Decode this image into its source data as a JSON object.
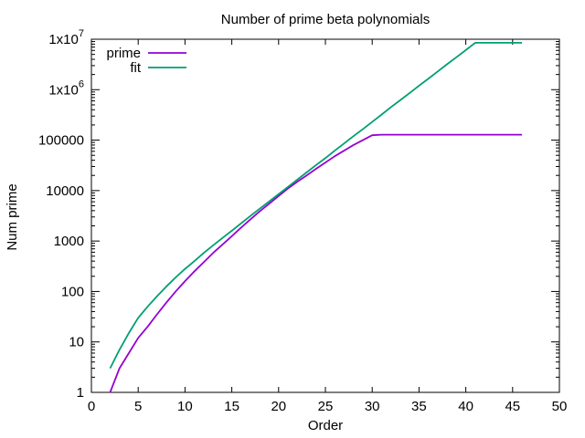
{
  "chart_data": {
    "type": "line",
    "title": "Number of prime beta polynomials",
    "xlabel": "Order",
    "ylabel": "Num prime",
    "xlim": [
      0,
      50
    ],
    "ylim": [
      1,
      10000000
    ],
    "yscale": "log",
    "grid": false,
    "legend_position": "top-left",
    "x_ticks": [
      0,
      5,
      10,
      15,
      20,
      25,
      30,
      35,
      40,
      45,
      50
    ],
    "x_tick_labels": [
      "0",
      "5",
      "10",
      "15",
      "20",
      "25",
      "30",
      "35",
      "40",
      "45",
      "50"
    ],
    "y_ticks": [
      1,
      10,
      100,
      1000,
      10000,
      100000,
      1000000,
      10000000
    ],
    "y_tick_labels": [
      {
        "base": "1",
        "exp": ""
      },
      {
        "base": "10",
        "exp": ""
      },
      {
        "base": "100",
        "exp": ""
      },
      {
        "base": "1000",
        "exp": ""
      },
      {
        "base": "10000",
        "exp": ""
      },
      {
        "base": "100000",
        "exp": ""
      },
      {
        "base": "1x10",
        "exp": "6"
      },
      {
        "base": "1x10",
        "exp": "7"
      }
    ],
    "series": [
      {
        "name": "prime",
        "color": "#9400d3",
        "x": [
          2,
          3,
          4,
          5,
          6,
          7,
          8,
          9,
          10,
          11,
          12,
          13,
          14,
          15,
          16,
          17,
          18,
          19,
          20,
          21,
          22,
          23,
          24,
          25,
          26,
          27,
          28,
          29,
          30,
          31,
          32,
          33,
          34,
          35,
          36,
          37,
          38,
          39,
          40,
          41,
          42,
          43,
          44,
          45,
          46
        ],
        "y": [
          1,
          3,
          6,
          12,
          20,
          35,
          60,
          100,
          160,
          250,
          380,
          580,
          850,
          1250,
          1850,
          2700,
          3900,
          5500,
          7800,
          11000,
          15000,
          20000,
          27000,
          36000,
          48000,
          62000,
          80000,
          100000,
          125000,
          128000,
          128000,
          128000,
          128000,
          128000,
          128000,
          128000,
          128000,
          128000,
          128000,
          128000,
          128000,
          128000,
          128000,
          128000,
          128000
        ]
      },
      {
        "name": "fit",
        "color": "#009e73",
        "x": [
          2,
          3,
          4,
          5,
          6,
          7,
          8,
          9,
          10,
          11,
          12,
          13,
          14,
          15,
          16,
          17,
          18,
          19,
          20,
          21,
          22,
          23,
          24,
          25,
          26,
          27,
          28,
          29,
          30,
          31,
          32,
          33,
          34,
          35,
          36,
          37,
          38,
          39,
          40,
          41,
          42,
          43,
          44,
          45,
          46
        ],
        "y": [
          3,
          7,
          15,
          30,
          50,
          80,
          125,
          190,
          280,
          400,
          580,
          820,
          1150,
          1600,
          2250,
          3150,
          4400,
          6100,
          8500,
          11800,
          16500,
          23000,
          32000,
          44000,
          62000,
          86000,
          120000,
          165000,
          230000,
          320000,
          450000,
          620000,
          860000,
          1200000,
          1650000,
          2300000,
          3200000,
          4400000,
          6100000,
          8500000,
          8500000,
          8500000,
          8500000,
          8500000,
          8500000
        ]
      }
    ]
  }
}
